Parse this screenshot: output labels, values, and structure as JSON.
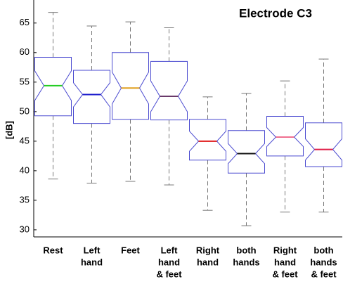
{
  "chart_data": {
    "type": "boxplot",
    "title": "Electrode C3",
    "y_label": "[dB]",
    "categories": [
      [
        "Rest"
      ],
      [
        "Left",
        "hand"
      ],
      [
        "Feet"
      ],
      [
        "Left",
        "hand",
        "& feet"
      ],
      [
        "Right",
        "hand"
      ],
      [
        "both",
        "hands"
      ],
      [
        "Right",
        "hand",
        "& feet"
      ],
      [
        "both",
        "hands",
        "& feet"
      ]
    ],
    "whisker_high": [
      66.8,
      64.5,
      65.2,
      64.2,
      52.5,
      53.1,
      55.2,
      58.9
    ],
    "q3": [
      59.2,
      57.0,
      60.0,
      58.5,
      48.7,
      46.8,
      49.2,
      48.1
    ],
    "notch_high": [
      56.9,
      54.9,
      56.7,
      55.2,
      46.7,
      44.6,
      47.3,
      45.4
    ],
    "median": [
      54.4,
      52.9,
      54.0,
      52.6,
      45.0,
      42.9,
      45.7,
      43.6
    ],
    "notch_low": [
      51.9,
      50.8,
      51.3,
      50.0,
      43.3,
      41.2,
      44.1,
      41.8
    ],
    "q1": [
      49.3,
      48.0,
      48.7,
      48.6,
      41.8,
      39.6,
      42.5,
      40.7
    ],
    "whisker_low": [
      38.6,
      37.9,
      38.2,
      37.6,
      33.3,
      30.7,
      33.0,
      33.0
    ],
    "median_colors": [
      "#22cc22",
      "#1a1acc",
      "#e0a020",
      "#6a3a6a",
      "#e01a1a",
      "#111111",
      "#f07090",
      "#e0204a"
    ],
    "box_color": "#4a4ad0",
    "whisker_color": "#777777",
    "ylim": [
      28.8,
      68.9
    ],
    "yticks": [
      30,
      35,
      40,
      45,
      50,
      55,
      60,
      65
    ]
  }
}
